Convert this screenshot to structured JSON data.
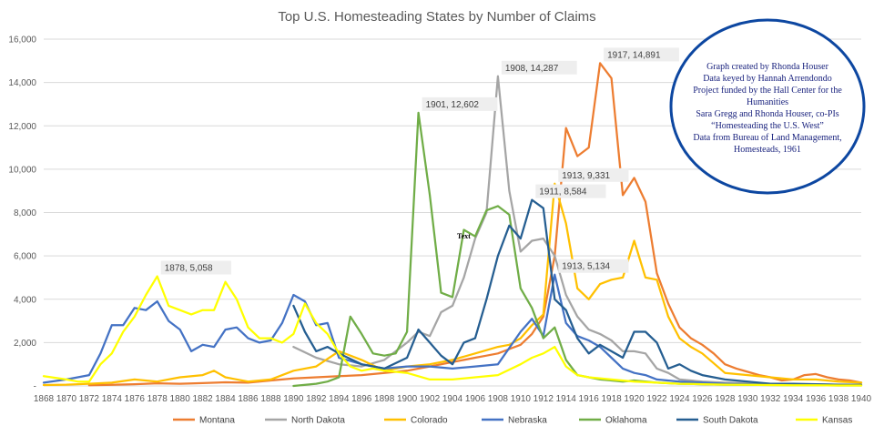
{
  "chart_data": {
    "type": "line",
    "title": "Top U.S. Homesteading States by Number of Claims",
    "xlabel": "",
    "ylabel": "",
    "ylim": [
      0,
      16000
    ],
    "xlim": [
      1868,
      1940
    ],
    "grid": true,
    "legend": "bottom",
    "y_ticks": [
      "-",
      "2,000",
      "4,000",
      "6,000",
      "8,000",
      "10,000",
      "12,000",
      "14,000",
      "16,000"
    ],
    "x_ticks": [
      "1868",
      "1870",
      "1872",
      "1874",
      "1876",
      "1878",
      "1880",
      "1882",
      "1884",
      "1886",
      "1888",
      "1890",
      "1892",
      "1894",
      "1896",
      "1898",
      "1900",
      "1902",
      "1904",
      "1906",
      "1908",
      "1910",
      "1912",
      "1914",
      "1916",
      "1918",
      "1920",
      "1922",
      "1924",
      "1926",
      "1928",
      "1930",
      "1932",
      "1934",
      "1936",
      "1938",
      "1940"
    ],
    "series": [
      {
        "name": "Montana",
        "color": "#ed7d31",
        "x": [
          1872,
          1874,
          1876,
          1878,
          1880,
          1882,
          1884,
          1886,
          1888,
          1890,
          1892,
          1894,
          1896,
          1898,
          1900,
          1902,
          1904,
          1906,
          1907,
          1908,
          1909,
          1910,
          1911,
          1912,
          1913,
          1914,
          1915,
          1916,
          1917,
          1918,
          1919,
          1920,
          1921,
          1922,
          1923,
          1924,
          1925,
          1926,
          1927,
          1928,
          1929,
          1930,
          1931,
          1932,
          1933,
          1934,
          1935,
          1936,
          1937,
          1938,
          1939,
          1940
        ],
        "y": [
          30,
          50,
          80,
          120,
          100,
          130,
          170,
          150,
          250,
          350,
          400,
          450,
          500,
          600,
          700,
          900,
          1100,
          1300,
          1400,
          1500,
          1700,
          1900,
          2400,
          3200,
          6000,
          11900,
          10600,
          11000,
          14891,
          14200,
          8800,
          9600,
          8500,
          5200,
          3800,
          2700,
          2200,
          1900,
          1500,
          1000,
          800,
          650,
          500,
          400,
          250,
          300,
          500,
          550,
          400,
          300,
          250,
          150
        ]
      },
      {
        "name": "North Dakota",
        "color": "#a5a5a5",
        "x": [
          1890,
          1892,
          1894,
          1896,
          1898,
          1899,
          1900,
          1901,
          1902,
          1903,
          1904,
          1905,
          1906,
          1907,
          1908,
          1909,
          1910,
          1911,
          1912,
          1913,
          1914,
          1915,
          1916,
          1917,
          1918,
          1919,
          1920,
          1921,
          1922,
          1923,
          1924,
          1926,
          1928,
          1930,
          1932,
          1934,
          1936,
          1938,
          1940
        ],
        "y": [
          1800,
          1300,
          1000,
          900,
          1200,
          1600,
          2000,
          2500,
          2300,
          3400,
          3700,
          5000,
          6800,
          8000,
          14287,
          9000,
          6200,
          6700,
          6800,
          6000,
          4200,
          3200,
          2600,
          2400,
          2100,
          1600,
          1600,
          1500,
          800,
          600,
          300,
          200,
          150,
          120,
          100,
          80,
          80,
          50,
          50
        ]
      },
      {
        "name": "Colorado",
        "color": "#ffc000",
        "x": [
          1868,
          1870,
          1872,
          1874,
          1876,
          1878,
          1880,
          1882,
          1883,
          1884,
          1886,
          1888,
          1890,
          1892,
          1894,
          1896,
          1898,
          1900,
          1902,
          1904,
          1906,
          1908,
          1909,
          1910,
          1911,
          1912,
          1913,
          1914,
          1915,
          1916,
          1917,
          1918,
          1919,
          1920,
          1921,
          1922,
          1923,
          1924,
          1925,
          1926,
          1928,
          1930,
          1932,
          1934,
          1936,
          1938,
          1940
        ],
        "y": [
          40,
          60,
          100,
          150,
          300,
          200,
          400,
          500,
          700,
          400,
          200,
          300,
          700,
          900,
          1600,
          1200,
          700,
          900,
          1000,
          1200,
          1500,
          1800,
          1900,
          2200,
          2800,
          3300,
          9331,
          7500,
          4500,
          4000,
          4700,
          4900,
          5000,
          6700,
          5000,
          4900,
          3200,
          2200,
          1800,
          1500,
          600,
          500,
          400,
          300,
          300,
          200,
          150
        ]
      },
      {
        "name": "Nebraska",
        "color": "#4472c4",
        "x": [
          1868,
          1870,
          1872,
          1873,
          1874,
          1875,
          1876,
          1877,
          1878,
          1879,
          1880,
          1881,
          1882,
          1883,
          1884,
          1885,
          1886,
          1887,
          1888,
          1889,
          1890,
          1891,
          1892,
          1893,
          1894,
          1896,
          1898,
          1900,
          1902,
          1904,
          1906,
          1908,
          1910,
          1911,
          1912,
          1913,
          1914,
          1915,
          1916,
          1917,
          1918,
          1919,
          1920,
          1921,
          1922,
          1924,
          1926,
          1928,
          1930,
          1932,
          1934,
          1936,
          1938,
          1940
        ],
        "y": [
          150,
          300,
          500,
          1500,
          2800,
          2800,
          3600,
          3500,
          3900,
          3000,
          2600,
          1600,
          1900,
          1800,
          2600,
          2700,
          2200,
          2000,
          2100,
          2900,
          4200,
          3900,
          2800,
          2900,
          1300,
          1000,
          800,
          900,
          900,
          800,
          900,
          1000,
          2500,
          3100,
          2300,
          5134,
          2900,
          2300,
          2100,
          1800,
          1300,
          800,
          600,
          500,
          300,
          200,
          150,
          100,
          80,
          60,
          50,
          50,
          40,
          30
        ]
      },
      {
        "name": "Oklahoma",
        "color": "#70ad47",
        "x": [
          1890,
          1892,
          1893,
          1894,
          1895,
          1896,
          1897,
          1898,
          1899,
          1900,
          1901,
          1902,
          1903,
          1904,
          1905,
          1906,
          1907,
          1908,
          1909,
          1910,
          1911,
          1912,
          1913,
          1914,
          1915,
          1916,
          1917,
          1918,
          1919,
          1920,
          1922,
          1924,
          1926,
          1928,
          1930,
          1932,
          1934,
          1936,
          1938,
          1940
        ],
        "y": [
          0,
          100,
          200,
          400,
          3200,
          2400,
          1500,
          1400,
          1500,
          2500,
          12602,
          8800,
          4300,
          4100,
          7200,
          6900,
          8100,
          8300,
          7900,
          4500,
          3600,
          2200,
          2700,
          1200,
          500,
          400,
          300,
          250,
          200,
          250,
          150,
          100,
          80,
          60,
          50,
          40,
          30,
          30,
          20,
          20
        ]
      },
      {
        "name": "South Dakota",
        "color": "#255e91",
        "x": [
          1890,
          1891,
          1892,
          1893,
          1894,
          1896,
          1898,
          1900,
          1901,
          1902,
          1903,
          1904,
          1905,
          1906,
          1907,
          1908,
          1909,
          1910,
          1911,
          1912,
          1913,
          1914,
          1915,
          1916,
          1917,
          1918,
          1919,
          1920,
          1921,
          1922,
          1923,
          1924,
          1925,
          1926,
          1928,
          1930,
          1932,
          1934,
          1936,
          1938,
          1940
        ],
        "y": [
          3700,
          2500,
          1600,
          1800,
          1500,
          1000,
          800,
          1300,
          2600,
          2000,
          1400,
          1000,
          2000,
          2200,
          4000,
          6000,
          7400,
          6800,
          8584,
          8200,
          4000,
          3500,
          2200,
          1500,
          1900,
          1600,
          1300,
          2500,
          2500,
          2000,
          800,
          1000,
          700,
          500,
          300,
          200,
          100,
          100,
          80,
          60,
          50
        ]
      },
      {
        "name": "Kansas",
        "color": "#ffff00",
        "x": [
          1868,
          1870,
          1871,
          1872,
          1873,
          1874,
          1875,
          1876,
          1877,
          1878,
          1879,
          1880,
          1881,
          1882,
          1883,
          1884,
          1885,
          1886,
          1887,
          1888,
          1889,
          1890,
          1891,
          1892,
          1893,
          1894,
          1895,
          1896,
          1897,
          1898,
          1900,
          1902,
          1904,
          1906,
          1908,
          1910,
          1911,
          1912,
          1913,
          1914,
          1915,
          1916,
          1918,
          1920,
          1922,
          1924,
          1926,
          1928,
          1930,
          1932,
          1934,
          1936,
          1938,
          1940
        ],
        "y": [
          450,
          300,
          200,
          200,
          1000,
          1500,
          2500,
          3200,
          4200,
          5058,
          3700,
          3500,
          3300,
          3500,
          3500,
          4800,
          4000,
          2700,
          2200,
          2200,
          2000,
          2400,
          3800,
          2900,
          2400,
          1500,
          900,
          700,
          800,
          700,
          600,
          300,
          300,
          400,
          500,
          1000,
          1300,
          1500,
          1800,
          900,
          500,
          400,
          300,
          200,
          150,
          100,
          80,
          60,
          50,
          40,
          30,
          30,
          20,
          20
        ]
      }
    ],
    "annotations": [
      {
        "text": "1878,  5,058",
        "x": 1878,
        "y": 5058
      },
      {
        "text": "1901,  12,602",
        "x": 1901,
        "y": 12602
      },
      {
        "text": "1908,  14,287",
        "x": 1908,
        "y": 14287
      },
      {
        "text": "1917,  14,891",
        "x": 1917,
        "y": 14891
      },
      {
        "text": "1913,  9,331",
        "x": 1913,
        "y": 9331
      },
      {
        "text": "1911,  8,584",
        "x": 1911,
        "y": 8584
      },
      {
        "text": "1913,  5,134",
        "x": 1913,
        "y": 5134
      }
    ],
    "stray_label": "Text",
    "credit": [
      "Graph created by Rhonda Houser",
      "Data keyed by Hannah Arrendondo",
      "Project funded by the Hall Center for the",
      "Humanities",
      "Sara Gregg and Rhonda Houser, co-PIs",
      "“Homesteading the U.S. West”",
      "Data from Bureau of Land Management,",
      "Homesteads, 1961"
    ],
    "credit_border_color": "#0d47a1"
  }
}
